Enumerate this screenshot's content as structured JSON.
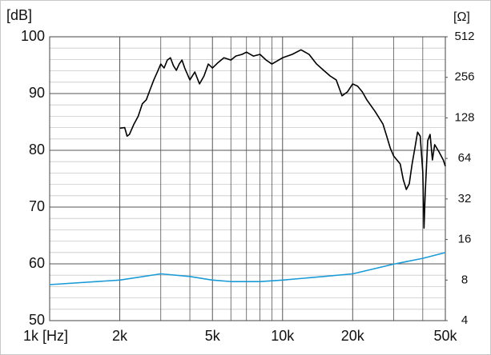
{
  "chart_data": {
    "type": "line",
    "y_unit_label": "[dB]",
    "y2_unit_label": "[Ω]",
    "xscale": "log",
    "y2scale": "log",
    "grid": true,
    "xlim": [
      1000,
      50000
    ],
    "xticks": [
      {
        "value": 1000,
        "label": "1k [Hz]"
      },
      {
        "value": 2000,
        "label": "2k"
      },
      {
        "value": 5000,
        "label": "5k"
      },
      {
        "value": 10000,
        "label": "10k"
      },
      {
        "value": 20000,
        "label": "20k"
      },
      {
        "value": 50000,
        "label": "50k"
      }
    ],
    "x_minor_ticks": [
      3000,
      4000,
      6000,
      7000,
      8000,
      9000,
      30000,
      40000
    ],
    "ylim": [
      50,
      100
    ],
    "yticks": [
      50,
      60,
      70,
      80,
      90,
      100
    ],
    "y_minor_ticks": [
      52,
      54,
      56,
      58,
      62,
      64,
      66,
      68,
      72,
      74,
      76,
      78,
      82,
      84,
      86,
      88,
      92,
      94,
      96,
      98
    ],
    "y2lim": [
      4,
      512
    ],
    "y2ticks": [
      4,
      8,
      16,
      32,
      64,
      128,
      256,
      512
    ],
    "series": [
      {
        "color": "#000000",
        "x": [
          2000,
          2100,
          2150,
          2200,
          2300,
          2400,
          2500,
          2600,
          2700,
          2800,
          2900,
          3000,
          3100,
          3200,
          3300,
          3400,
          3500,
          3600,
          3700,
          3800,
          4000,
          4200,
          4400,
          4600,
          4800,
          5000,
          5300,
          5600,
          6000,
          6300,
          6700,
          7000,
          7500,
          8000,
          8500,
          9000,
          10000,
          11000,
          12000,
          13000,
          14000,
          15000,
          16000,
          17000,
          18000,
          19000,
          20000,
          21000,
          22000,
          23000,
          25000,
          27000,
          28000,
          29000,
          30000,
          32000,
          33000,
          34000,
          35000,
          36000,
          37000,
          38000,
          39000,
          40000,
          40500,
          41000,
          42000,
          43000,
          44000,
          45000,
          47000,
          49000,
          50000
        ],
        "values": [
          83.9,
          84,
          82.5,
          82.8,
          84.6,
          86,
          88.2,
          88.9,
          90.7,
          92.4,
          93.8,
          95.2,
          94.5,
          95.9,
          96.3,
          94.9,
          94.1,
          95.2,
          95.9,
          94.5,
          92.4,
          93.8,
          91.7,
          93.1,
          95.2,
          94.5,
          95.5,
          96.3,
          95.9,
          96.6,
          96.9,
          97.3,
          96.6,
          96.9,
          95.9,
          95.2,
          96.3,
          96.9,
          97.7,
          96.9,
          95.2,
          94.1,
          93.1,
          92.4,
          89.6,
          90.3,
          91.7,
          91.3,
          90.3,
          88.9,
          86.8,
          84.6,
          82.5,
          80.4,
          79,
          77.6,
          74.8,
          73.1,
          74.1,
          77.6,
          80.4,
          83.2,
          82.5,
          76.2,
          66.3,
          72.7,
          81.7,
          82.8,
          78.3,
          81,
          79.7,
          78.3,
          77.2
        ]
      },
      {
        "color": "#1a9ad6",
        "axis": "y2",
        "x": [
          1000,
          2000,
          3000,
          4000,
          5000,
          6000,
          8000,
          10000,
          15000,
          20000,
          30000,
          40000,
          50000
        ],
        "values": [
          7.4,
          8.0,
          8.9,
          8.5,
          8.0,
          7.8,
          7.8,
          8.0,
          8.5,
          8.9,
          10.5,
          11.6,
          12.8
        ]
      }
    ]
  }
}
